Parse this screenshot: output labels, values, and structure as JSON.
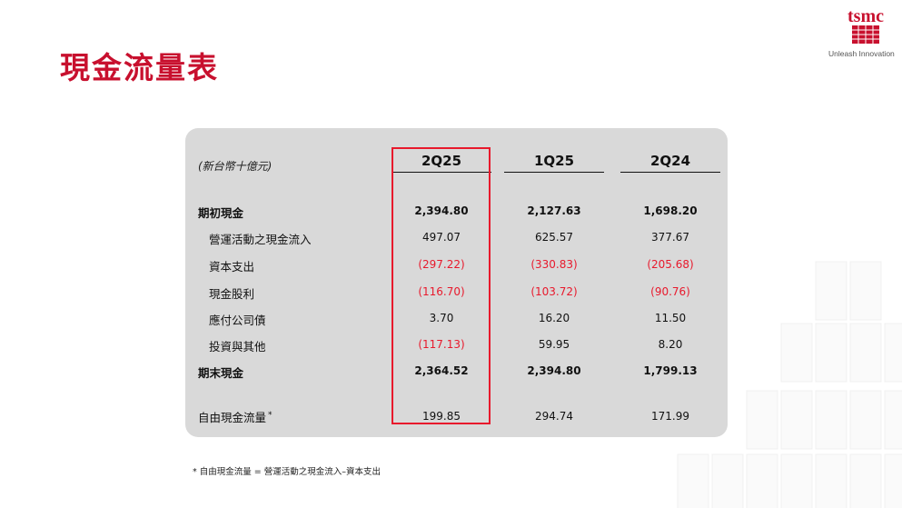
{
  "header": {
    "title": "現金流量表",
    "logo_wordmark": "tsmc",
    "logo_tagline": "Unleash Innovation"
  },
  "table": {
    "unit_label": "(新台幣十億元)",
    "columns": [
      "2Q25",
      "1Q25",
      "2Q24"
    ],
    "highlighted_column": "2Q25",
    "rows": [
      {
        "label": "期初現金",
        "values": [
          "2,394.80",
          "2,127.63",
          "1,698.20"
        ],
        "bold": true
      },
      {
        "label": "營運活動之現金流入",
        "values": [
          "497.07",
          "625.57",
          "377.67"
        ],
        "bold": false
      },
      {
        "label": "資本支出",
        "values": [
          "(297.22)",
          "(330.83)",
          "(205.68)"
        ],
        "bold": false
      },
      {
        "label": "現金股利",
        "values": [
          "(116.70)",
          "(103.72)",
          "(90.76)"
        ],
        "bold": false
      },
      {
        "label": "應付公司債",
        "values": [
          "3.70",
          "16.20",
          "11.50"
        ],
        "bold": false
      },
      {
        "label": "投資與其他",
        "values": [
          "(117.13)",
          "59.95",
          "8.20"
        ],
        "bold": false
      },
      {
        "label": "期末現金",
        "values": [
          "2,364.52",
          "2,394.80",
          "1,799.13"
        ],
        "bold": true
      },
      {
        "label": "自由現金流量",
        "values": [
          "199.85",
          "294.74",
          "171.99"
        ],
        "bold": false,
        "note_mark": "*"
      }
    ]
  },
  "footnote": "* 自由現金流量 = 營運活動之現金流入–資本支出",
  "colors": {
    "title_red": "#c8102e",
    "negative_red": "#e8192c",
    "panel_gray": "#d9d9d9"
  }
}
